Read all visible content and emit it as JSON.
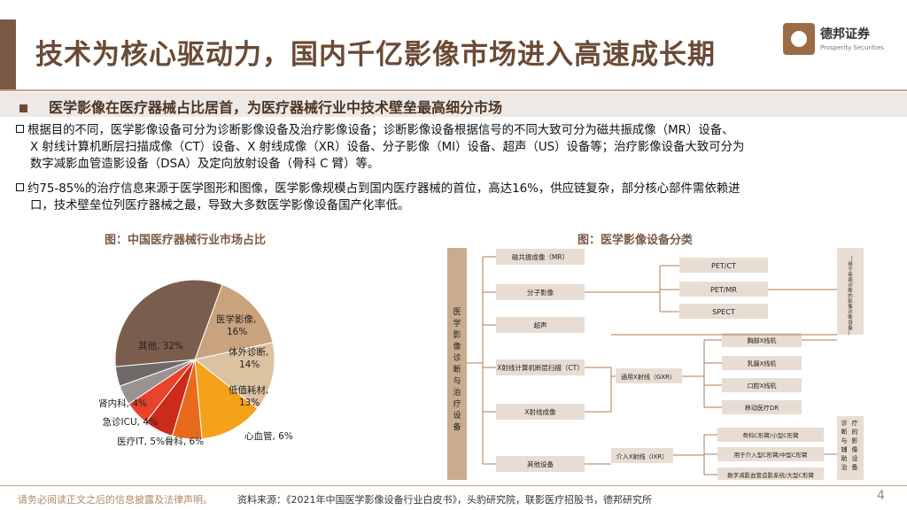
{
  "header": {
    "title": "技术为核心驱动力，国内千亿影像市场进入高速成长期",
    "logo_cn": "德邦证券",
    "logo_en": "Prosperity Securities"
  },
  "subtitle": "医学影像在医疗器械占比居首，为医疗器械行业中技术壁垒最高细分市场",
  "paragraphs": [
    {
      "line1": "根据目的不同，医学影像设备可分为诊断影像设备及治疗影像设备；诊断影像设备根据信号的不同大致可分为磁共振成像（MR）设备、",
      "line2": "X 射线计算机断层扫描成像（CT）设备、X 射线成像（XR）设备、分子影像（MI）设备、超声（US）设备等；治疗影像设备大致可分为",
      "line3": "数字减影血管造影设备（DSA）及定向放射设备（骨科 C 臂）等。"
    },
    {
      "line1": "约75-85%的治疗信息来源于医学图形和图像，医学影像规模占到国内医疗器械的首位，高达16%，供应链复杂，部分核心部件需依赖进",
      "line2": "口，技术壁垒位列医疗器械之最，导致大多数医学影像设备国产化率低。"
    }
  ],
  "captions": {
    "pie": "图：中国医疗器械行业市场占比",
    "diagram": "图：医学影像设备分类"
  },
  "chart_data": {
    "type": "pie",
    "series": [
      {
        "label": "医学影像,",
        "value": 16,
        "display": "16%",
        "color": "#c9a27e"
      },
      {
        "label": "体外诊断,",
        "value": 14,
        "display": "14%",
        "color": "#ddc2a0"
      },
      {
        "label": "低值耗材,",
        "value": 13,
        "display": "13%",
        "color": "#f5a21b"
      },
      {
        "label": "心血管,",
        "value": 6,
        "display": "6%",
        "color": "#e86a1d"
      },
      {
        "label": "骨科,",
        "value": 6,
        "display": "6%",
        "color": "#cc2a1b"
      },
      {
        "label": "医疗IT,",
        "value": 5,
        "display": "5%",
        "color": "#e8422a"
      },
      {
        "label": "急诊ICU,",
        "value": 4,
        "display": "4%",
        "color": "#9a9390"
      },
      {
        "label": "肾内科,",
        "value": 4,
        "display": "4%",
        "color": "#6d6a69"
      },
      {
        "label": "其他,",
        "value": 32,
        "display": "32%",
        "color": "#7a5d4c"
      }
    ]
  },
  "diagram": {
    "root": "医学影像诊断与治疗设备",
    "items": [
      "磁共振成像（MR）",
      "分子影像",
      "超声",
      "X射线计算机断层扫描（CT）",
      "X射线成像",
      "其他设备"
    ],
    "mi_sub": [
      "PET/CT",
      "PET/MR",
      "SPECT"
    ],
    "gxr": "通用X射线（GXR）",
    "gxr_sub": [
      "胸部X线机",
      "乳腺X线机",
      "口腔X线机",
      "移动医疗DR"
    ],
    "ixr": "介入X射线（IXR）",
    "ixr_sub": [
      "骨科C形臂/小型C形臂",
      "用于介入型C形臂/中型C形臂",
      "数字减影血管造影系统/大型C形臂"
    ],
    "right1": "（用于疾病诊断的影像诊断设备）",
    "right2": "诊断与辅助治疗的影像设备"
  },
  "footer": {
    "disclaimer": "请务必阅读正文之后的信息披露及法律声明。",
    "source": "资料来源：《2021年中国医学影像设备行业白皮书》，头豹研究院，联影医疗招股书，德邦研究所",
    "page": "4"
  }
}
